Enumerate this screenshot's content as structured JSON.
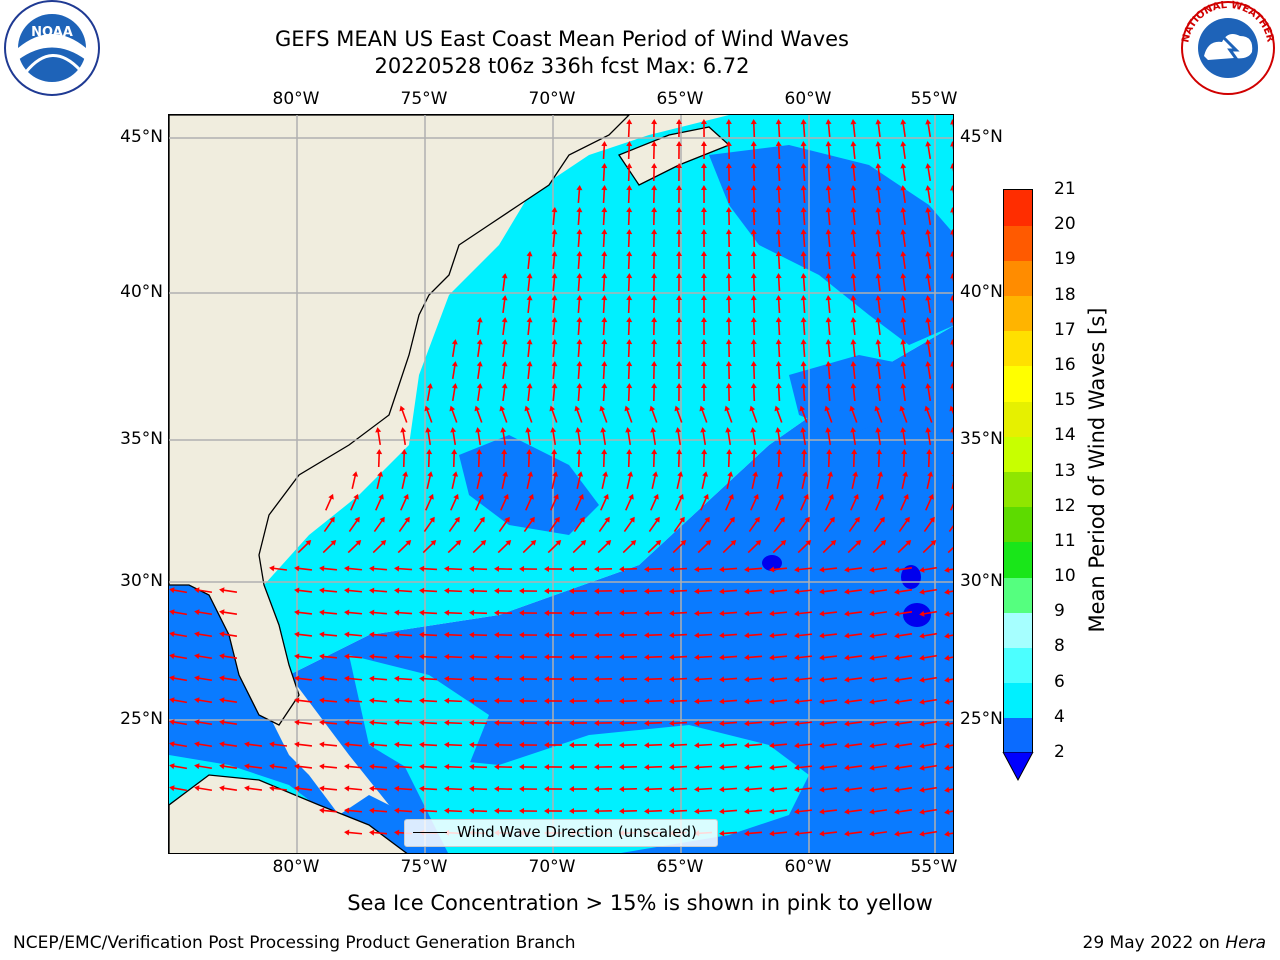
{
  "title_line1": "GEFS MEAN US East Coast Mean Period of Wind Waves",
  "title_line2": "20220528 t06z 336h fcst   Max: 6.72",
  "lon_labels": [
    "80°W",
    "75°W",
    "70°W",
    "65°W",
    "60°W",
    "55°W"
  ],
  "lat_labels": [
    "45°N",
    "40°N",
    "35°N",
    "30°N",
    "25°N"
  ],
  "legend_label": "Wind Wave Direction (unscaled)",
  "colorbar": {
    "label": "Mean Period of Wind Waves [s]",
    "ticks": [
      "2",
      "4",
      "6",
      "8",
      "9",
      "10",
      "11",
      "12",
      "13",
      "14",
      "15",
      "16",
      "17",
      "18",
      "19",
      "20",
      "21"
    ],
    "colors": [
      "#0a6bff",
      "#00f0ff",
      "#4cffff",
      "#a6ffff",
      "#55ff7f",
      "#19e619",
      "#5ddb00",
      "#8fe600",
      "#c8ff00",
      "#e6f000",
      "#ffff00",
      "#ffe000",
      "#ffb400",
      "#ff8c00",
      "#ff5a00",
      "#ff2d00"
    ],
    "extend_color": "#0000ff"
  },
  "field_colors": {
    "land": "#f0edde",
    "class_2_4": "#0a7bff",
    "class_4_6": "#00f0ff",
    "class_lt_2": "#0000ee",
    "arrow": "#ff0000",
    "grid": "#b0b0b0"
  },
  "sea_ice_note": "Sea Ice Concentration > 15% is shown in pink to yellow",
  "footer_left": "NCEP/EMC/Verification Post Processing Product Generation Branch",
  "footer_right_date": "29 May 2022 on ",
  "footer_right_host": "Hera",
  "noaa_logo_text": "NOAA",
  "nws_logo_text": "NATIONAL WEATHER SERVICE"
}
